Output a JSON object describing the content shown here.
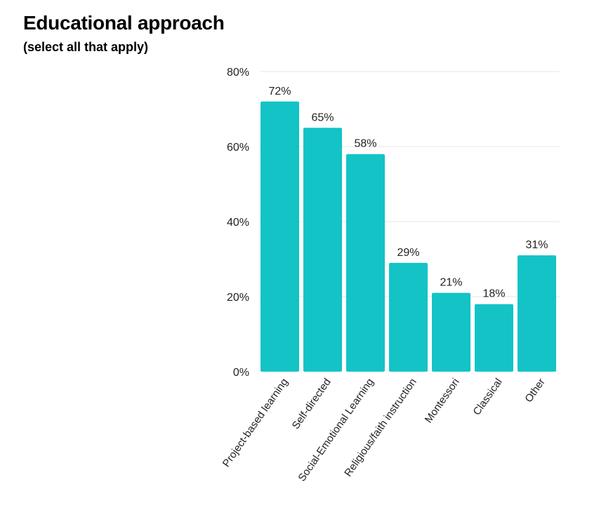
{
  "header": {
    "title": "Educational approach",
    "subtitle": "(select all that apply)"
  },
  "colors": {
    "bar": "#13c3c6",
    "grid": "#e6e6e6"
  },
  "chart_data": {
    "type": "bar",
    "title": "Educational approach",
    "subtitle": "(select all that apply)",
    "xlabel": "",
    "ylabel": "",
    "ylim": [
      0,
      80
    ],
    "yticks": [
      0,
      20,
      40,
      60,
      80
    ],
    "ytick_labels": [
      "0%",
      "20%",
      "40%",
      "60%",
      "80%"
    ],
    "grid": true,
    "categories": [
      "Project-based learning",
      "Self-directed",
      "Social-Emotional Learning",
      "Religious/faith instruction",
      "Montessori",
      "Classical",
      "Other"
    ],
    "values": [
      72,
      65,
      58,
      29,
      21,
      18,
      31
    ],
    "data_labels": [
      "72%",
      "65%",
      "58%",
      "29%",
      "21%",
      "18%",
      "31%"
    ]
  }
}
